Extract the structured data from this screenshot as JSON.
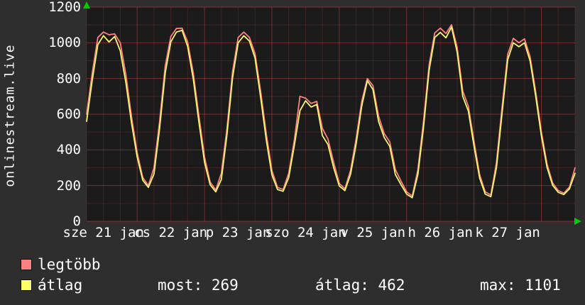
{
  "branding": {
    "watermark": "onlinestream.live"
  },
  "colors": {
    "background": "#2e2e2e",
    "plot_background": "#1b1b1b",
    "grid_major": "rgba(255,70,70,0.42)",
    "grid_minor": "rgba(255,70,70,0.16)",
    "axis_text": "#ffffff",
    "arrow": "#00cc00",
    "series_max": "#ff8080",
    "series_avg": "#f8f870"
  },
  "legend": [
    {
      "key": "legtobb",
      "label": "legtöbb",
      "color": "#ff8080"
    },
    {
      "key": "atlag",
      "label": "átlag",
      "color": "#ffff66"
    }
  ],
  "stats": [
    {
      "text": "most: 269"
    },
    {
      "text": "átlag: 462"
    },
    {
      "text": "max: 1101"
    }
  ],
  "chart_data": {
    "type": "line",
    "title": "",
    "xlabel": "",
    "ylabel": "onlinestream.live",
    "x_unit": "hours",
    "x_range": [
      0,
      174
    ],
    "step_hours": 2,
    "ylim": [
      0,
      1200
    ],
    "y_ticks": [
      0,
      200,
      400,
      600,
      800,
      1000,
      1200
    ],
    "y_minor_step": 100,
    "x_ticks": [
      {
        "label": "sze 21 jan",
        "t": 6
      },
      {
        "label": "cs 22 jan",
        "t": 30
      },
      {
        "label": "p 23 jan",
        "t": 54
      },
      {
        "label": "szo 24 jan",
        "t": 78
      },
      {
        "label": "v 25 jan",
        "t": 102
      },
      {
        "label": "h 26 jan",
        "t": 126
      },
      {
        "label": "k 27 jan",
        "t": 150
      }
    ],
    "x_major_gridlines_t": [
      18,
      42,
      66,
      90,
      114,
      138,
      162
    ],
    "x_minor_step": 6,
    "series": [
      {
        "key": "legtobb",
        "name": "legtöbb",
        "color": "#ff8080",
        "values": [
          600,
          830,
          1030,
          1060,
          1045,
          1050,
          1000,
          820,
          585,
          385,
          245,
          200,
          300,
          560,
          870,
          1035,
          1080,
          1082,
          1005,
          830,
          590,
          360,
          220,
          175,
          270,
          520,
          840,
          1030,
          1060,
          1030,
          940,
          730,
          490,
          285,
          190,
          178,
          270,
          455,
          700,
          690,
          660,
          672,
          520,
          460,
          330,
          212,
          182,
          285,
          462,
          672,
          800,
          760,
          590,
          492,
          445,
          290,
          225,
          165,
          142,
          290,
          558,
          875,
          1055,
          1082,
          1052,
          1101,
          975,
          730,
          645,
          448,
          262,
          165,
          148,
          330,
          640,
          935,
          1025,
          1000,
          1022,
          922,
          725,
          500,
          322,
          215,
          172,
          158,
          192,
          300
        ]
      },
      {
        "key": "atlag",
        "name": "átlag",
        "color": "#f8f870",
        "values": [
          560,
          790,
          990,
          1040,
          1005,
          1035,
          955,
          775,
          550,
          360,
          230,
          190,
          265,
          520,
          830,
          1005,
          1060,
          1070,
          980,
          795,
          555,
          330,
          205,
          165,
          235,
          485,
          805,
          1000,
          1040,
          1010,
          915,
          695,
          455,
          260,
          178,
          168,
          245,
          425,
          620,
          675,
          640,
          655,
          480,
          430,
          300,
          198,
          172,
          262,
          432,
          645,
          788,
          738,
          560,
          470,
          420,
          262,
          205,
          152,
          132,
          262,
          525,
          845,
          1030,
          1058,
          1028,
          1088,
          948,
          700,
          618,
          420,
          242,
          152,
          138,
          300,
          605,
          905,
          1000,
          978,
          1000,
          898,
          700,
          478,
          302,
          202,
          162,
          150,
          182,
          269
        ]
      }
    ]
  }
}
